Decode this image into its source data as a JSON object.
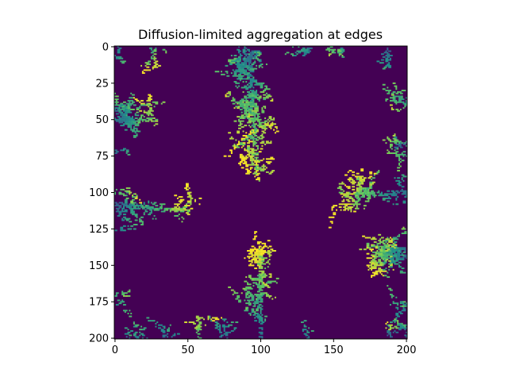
{
  "chart_data": {
    "type": "heatmap",
    "title": "Diffusion-limited aggregation at edges",
    "xlabel": "",
    "ylabel": "",
    "xlim": [
      0,
      201
    ],
    "ylim": [
      201,
      0
    ],
    "grid_size": 201,
    "x_ticks": [
      0,
      50,
      100,
      150,
      200
    ],
    "y_ticks": [
      0,
      25,
      50,
      75,
      100,
      125,
      150,
      175,
      200
    ],
    "colormap": "viridis",
    "background_color": "#440154",
    "value_range": [
      0,
      1
    ],
    "edge_seeds": "all four borders",
    "clusters": [
      {
        "name": "top-center tree",
        "root": [
          92,
          5
        ],
        "tip": [
          98,
          92
        ]
      },
      {
        "name": "bottom-center tree",
        "root": [
          100,
          200
        ],
        "tip": [
          100,
          138
        ]
      },
      {
        "name": "left-middle tree",
        "root": [
          0,
          108
        ],
        "tip": [
          50,
          113
        ]
      },
      {
        "name": "left-upper tree",
        "root": [
          0,
          50
        ],
        "tip": [
          28,
          50
        ]
      },
      {
        "name": "right-middle tree",
        "root": [
          201,
          100
        ],
        "tip": [
          155,
          102
        ]
      },
      {
        "name": "right-lower tree",
        "root": [
          201,
          145
        ],
        "tip": [
          180,
          143
        ]
      }
    ]
  }
}
